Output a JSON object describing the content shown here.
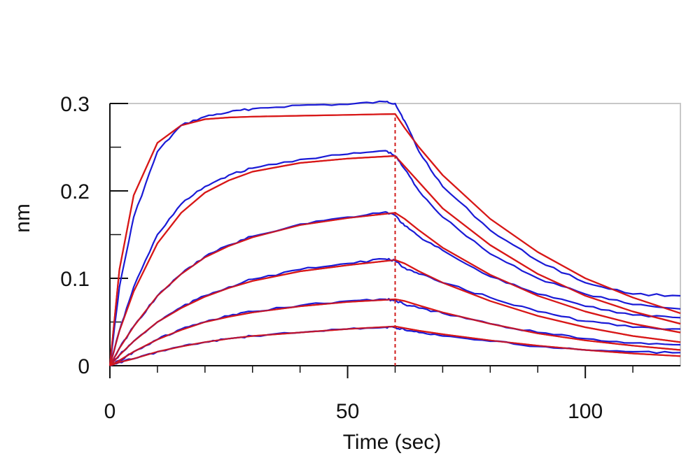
{
  "chart_data": {
    "type": "line",
    "title": "",
    "xlabel": "Time (sec)",
    "ylabel": "nm",
    "xlim": [
      0,
      120
    ],
    "ylim": [
      0,
      0.3
    ],
    "x_ticks": [
      "0",
      "50",
      "100"
    ],
    "y_ticks": [
      "0",
      "0.1",
      "0.2",
      "0.3"
    ],
    "x_tick_values": [
      0,
      50,
      100
    ],
    "y_tick_values": [
      0,
      0.1,
      0.2,
      0.3
    ],
    "x_minor_step": 10,
    "y_minor_step": 0.05,
    "grid": false,
    "legend": "none",
    "annotations": [
      {
        "type": "vertical-dashed-line",
        "x": 60,
        "color": "#d01c1c"
      }
    ],
    "colors": {
      "measured": "#1a1ad6",
      "fit": "#d81818",
      "marker": "#d01c1c",
      "frame": "#c8c8c8"
    },
    "measured_series": [
      {
        "x": [
          0,
          2,
          5,
          10,
          15,
          20,
          25,
          30,
          40,
          50,
          58,
          60,
          62,
          65,
          70,
          80,
          90,
          100,
          110,
          120
        ],
        "values": [
          0,
          0.09,
          0.17,
          0.245,
          0.275,
          0.285,
          0.29,
          0.294,
          0.298,
          0.299,
          0.302,
          0.3,
          0.28,
          0.245,
          0.205,
          0.155,
          0.12,
          0.095,
          0.082,
          0.08
        ]
      },
      {
        "x": [
          0,
          2,
          5,
          10,
          15,
          20,
          25,
          30,
          40,
          50,
          58,
          60,
          62,
          65,
          70,
          80,
          90,
          100,
          110,
          120
        ],
        "values": [
          0,
          0.04,
          0.09,
          0.15,
          0.185,
          0.205,
          0.218,
          0.226,
          0.236,
          0.242,
          0.246,
          0.24,
          0.225,
          0.2,
          0.17,
          0.128,
          0.1,
          0.082,
          0.07,
          0.065
        ]
      },
      {
        "x": [
          0,
          2,
          5,
          10,
          15,
          20,
          25,
          30,
          40,
          50,
          58,
          60,
          62,
          65,
          70,
          80,
          90,
          100,
          110,
          120
        ],
        "values": [
          0,
          0.02,
          0.045,
          0.08,
          0.105,
          0.125,
          0.138,
          0.148,
          0.162,
          0.17,
          0.176,
          0.172,
          0.16,
          0.148,
          0.132,
          0.102,
          0.082,
          0.068,
          0.058,
          0.055
        ]
      },
      {
        "x": [
          0,
          2,
          5,
          10,
          15,
          20,
          25,
          30,
          40,
          50,
          58,
          60,
          62,
          65,
          70,
          80,
          90,
          100,
          110,
          120
        ],
        "values": [
          0,
          0.012,
          0.028,
          0.05,
          0.067,
          0.08,
          0.09,
          0.099,
          0.11,
          0.117,
          0.122,
          0.12,
          0.112,
          0.105,
          0.095,
          0.078,
          0.062,
          0.051,
          0.044,
          0.042
        ]
      },
      {
        "x": [
          0,
          2,
          5,
          10,
          15,
          20,
          25,
          30,
          40,
          50,
          58,
          60,
          62,
          65,
          70,
          80,
          90,
          100,
          110,
          120
        ],
        "values": [
          0,
          0.006,
          0.016,
          0.03,
          0.042,
          0.05,
          0.057,
          0.062,
          0.069,
          0.074,
          0.076,
          0.075,
          0.07,
          0.066,
          0.06,
          0.048,
          0.038,
          0.031,
          0.026,
          0.024
        ]
      },
      {
        "x": [
          0,
          2,
          5,
          10,
          15,
          20,
          25,
          30,
          40,
          50,
          58,
          60,
          62,
          65,
          70,
          80,
          90,
          100,
          110,
          120
        ],
        "values": [
          0,
          0.004,
          0.008,
          0.016,
          0.022,
          0.027,
          0.031,
          0.034,
          0.038,
          0.042,
          0.044,
          0.044,
          0.041,
          0.038,
          0.034,
          0.028,
          0.022,
          0.018,
          0.016,
          0.015
        ]
      }
    ],
    "fit_series": [
      {
        "x": [
          0,
          2,
          5,
          10,
          15,
          20,
          25,
          30,
          40,
          50,
          60,
          62,
          65,
          70,
          80,
          90,
          100,
          110,
          120
        ],
        "values": [
          0,
          0.11,
          0.195,
          0.255,
          0.275,
          0.282,
          0.284,
          0.285,
          0.286,
          0.287,
          0.288,
          0.272,
          0.25,
          0.218,
          0.168,
          0.13,
          0.1,
          0.078,
          0.06
        ]
      },
      {
        "x": [
          0,
          2,
          5,
          10,
          15,
          20,
          25,
          30,
          40,
          50,
          60,
          62,
          65,
          70,
          80,
          90,
          100,
          110,
          120
        ],
        "values": [
          0,
          0.04,
          0.085,
          0.14,
          0.175,
          0.198,
          0.212,
          0.222,
          0.232,
          0.237,
          0.24,
          0.228,
          0.21,
          0.18,
          0.138,
          0.105,
          0.08,
          0.062,
          0.048
        ]
      },
      {
        "x": [
          0,
          2,
          5,
          10,
          15,
          20,
          25,
          30,
          40,
          50,
          60,
          62,
          65,
          70,
          80,
          90,
          100,
          110,
          120
        ],
        "values": [
          0,
          0.02,
          0.045,
          0.08,
          0.105,
          0.124,
          0.137,
          0.147,
          0.161,
          0.169,
          0.175,
          0.168,
          0.155,
          0.135,
          0.104,
          0.08,
          0.062,
          0.048,
          0.038
        ]
      },
      {
        "x": [
          0,
          2,
          5,
          10,
          15,
          20,
          25,
          30,
          40,
          50,
          60,
          62,
          65,
          70,
          80,
          90,
          100,
          110,
          120
        ],
        "values": [
          0,
          0.012,
          0.028,
          0.05,
          0.066,
          0.079,
          0.089,
          0.097,
          0.108,
          0.115,
          0.121,
          0.117,
          0.108,
          0.095,
          0.074,
          0.057,
          0.044,
          0.034,
          0.027
        ]
      },
      {
        "x": [
          0,
          2,
          5,
          10,
          15,
          20,
          25,
          30,
          40,
          50,
          60,
          62,
          65,
          70,
          80,
          90,
          100,
          110,
          120
        ],
        "values": [
          0,
          0.006,
          0.016,
          0.03,
          0.041,
          0.05,
          0.056,
          0.061,
          0.068,
          0.073,
          0.076,
          0.074,
          0.069,
          0.061,
          0.048,
          0.037,
          0.029,
          0.023,
          0.018
        ]
      },
      {
        "x": [
          0,
          2,
          5,
          10,
          15,
          20,
          25,
          30,
          40,
          50,
          60,
          62,
          65,
          70,
          80,
          90,
          100,
          110,
          120
        ],
        "values": [
          0,
          0.004,
          0.008,
          0.016,
          0.022,
          0.027,
          0.031,
          0.034,
          0.038,
          0.042,
          0.045,
          0.043,
          0.04,
          0.036,
          0.029,
          0.023,
          0.018,
          0.014,
          0.011
        ]
      }
    ]
  }
}
